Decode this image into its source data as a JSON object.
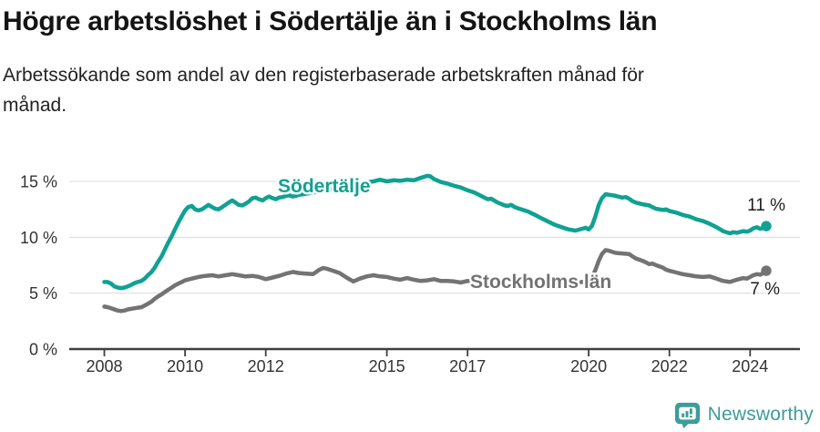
{
  "chart_data": {
    "type": "line",
    "title": "Högre arbetslöshet i Södertälje än i Stockholms län",
    "subtitle": "Arbetssökande som andel av den registerbaserade arbetskraften månad för månad.",
    "subtitle_lines": [
      "Arbetssökande som andel av den registerbaserade arbetskraften månad för",
      "månad."
    ],
    "unit": "%",
    "grid": "horizontal",
    "xlim": [
      2007.1,
      2025.2
    ],
    "ylim": [
      0,
      16
    ],
    "x_ticks": [
      2008,
      2010,
      2012,
      2015,
      2017,
      2020,
      2022,
      2024
    ],
    "x_tick_labels": [
      "2008",
      "2010",
      "2012",
      "2015",
      "2017",
      "2020",
      "2022",
      "2024"
    ],
    "y_ticks": [
      0,
      5,
      10,
      15
    ],
    "y_tick_labels": [
      "0 %",
      "5 %",
      "10 %",
      "15 %"
    ],
    "series": [
      {
        "name": "Södertälje",
        "color": "#10a193",
        "end_label": "11 %",
        "end_value": 11,
        "points": [
          [
            2008.0,
            6.0
          ],
          [
            2008.08,
            6.0
          ],
          [
            2008.17,
            5.85
          ],
          [
            2008.25,
            5.6
          ],
          [
            2008.33,
            5.5
          ],
          [
            2008.42,
            5.45
          ],
          [
            2008.5,
            5.5
          ],
          [
            2008.58,
            5.6
          ],
          [
            2008.67,
            5.75
          ],
          [
            2008.75,
            5.9
          ],
          [
            2008.83,
            6.0
          ],
          [
            2008.92,
            6.1
          ],
          [
            2009.0,
            6.3
          ],
          [
            2009.08,
            6.6
          ],
          [
            2009.17,
            6.9
          ],
          [
            2009.25,
            7.3
          ],
          [
            2009.33,
            7.8
          ],
          [
            2009.42,
            8.3
          ],
          [
            2009.5,
            8.9
          ],
          [
            2009.58,
            9.5
          ],
          [
            2009.67,
            10.1
          ],
          [
            2009.75,
            10.7
          ],
          [
            2009.83,
            11.3
          ],
          [
            2009.92,
            11.9
          ],
          [
            2010.0,
            12.4
          ],
          [
            2010.08,
            12.7
          ],
          [
            2010.17,
            12.8
          ],
          [
            2010.25,
            12.5
          ],
          [
            2010.33,
            12.4
          ],
          [
            2010.42,
            12.5
          ],
          [
            2010.5,
            12.7
          ],
          [
            2010.58,
            12.9
          ],
          [
            2010.67,
            12.7
          ],
          [
            2010.75,
            12.55
          ],
          [
            2010.83,
            12.5
          ],
          [
            2010.92,
            12.7
          ],
          [
            2011.0,
            12.9
          ],
          [
            2011.08,
            13.1
          ],
          [
            2011.17,
            13.3
          ],
          [
            2011.25,
            13.1
          ],
          [
            2011.33,
            12.9
          ],
          [
            2011.42,
            12.85
          ],
          [
            2011.5,
            13.0
          ],
          [
            2011.58,
            13.2
          ],
          [
            2011.67,
            13.5
          ],
          [
            2011.75,
            13.55
          ],
          [
            2011.83,
            13.4
          ],
          [
            2011.92,
            13.3
          ],
          [
            2012.0,
            13.5
          ],
          [
            2012.08,
            13.65
          ],
          [
            2012.17,
            13.5
          ],
          [
            2012.25,
            13.4
          ],
          [
            2012.33,
            13.55
          ],
          [
            2012.42,
            13.6
          ],
          [
            2012.5,
            13.7
          ],
          [
            2012.58,
            13.75
          ],
          [
            2012.67,
            13.65
          ],
          [
            2012.75,
            13.7
          ],
          [
            2012.83,
            13.8
          ],
          [
            2012.92,
            13.85
          ],
          [
            2013.0,
            13.9
          ],
          [
            2013.17,
            14.0
          ],
          [
            2013.33,
            14.1
          ],
          [
            2013.5,
            14.2
          ],
          [
            2013.67,
            14.35
          ],
          [
            2013.83,
            14.5
          ],
          [
            2014.0,
            14.6
          ],
          [
            2014.17,
            14.7
          ],
          [
            2014.33,
            14.8
          ],
          [
            2014.5,
            14.9
          ],
          [
            2014.67,
            15.0
          ],
          [
            2014.83,
            15.15
          ],
          [
            2015.0,
            15.0
          ],
          [
            2015.17,
            15.1
          ],
          [
            2015.33,
            15.05
          ],
          [
            2015.5,
            15.15
          ],
          [
            2015.67,
            15.1
          ],
          [
            2015.83,
            15.3
          ],
          [
            2016.0,
            15.5
          ],
          [
            2016.08,
            15.45
          ],
          [
            2016.17,
            15.2
          ],
          [
            2016.33,
            14.95
          ],
          [
            2016.5,
            14.8
          ],
          [
            2016.67,
            14.6
          ],
          [
            2016.83,
            14.45
          ],
          [
            2017.0,
            14.2
          ],
          [
            2017.17,
            14.0
          ],
          [
            2017.33,
            13.7
          ],
          [
            2017.5,
            13.4
          ],
          [
            2017.58,
            13.45
          ],
          [
            2017.75,
            13.1
          ],
          [
            2017.92,
            12.85
          ],
          [
            2018.0,
            12.8
          ],
          [
            2018.08,
            12.9
          ],
          [
            2018.17,
            12.7
          ],
          [
            2018.33,
            12.5
          ],
          [
            2018.5,
            12.3
          ],
          [
            2018.67,
            12.0
          ],
          [
            2018.83,
            11.7
          ],
          [
            2019.0,
            11.4
          ],
          [
            2019.17,
            11.1
          ],
          [
            2019.33,
            10.9
          ],
          [
            2019.5,
            10.7
          ],
          [
            2019.67,
            10.6
          ],
          [
            2019.83,
            10.75
          ],
          [
            2019.92,
            10.85
          ],
          [
            2020.0,
            10.7
          ],
          [
            2020.08,
            11.0
          ],
          [
            2020.17,
            11.9
          ],
          [
            2020.25,
            12.9
          ],
          [
            2020.33,
            13.5
          ],
          [
            2020.42,
            13.85
          ],
          [
            2020.5,
            13.8
          ],
          [
            2020.67,
            13.7
          ],
          [
            2020.83,
            13.55
          ],
          [
            2020.92,
            13.6
          ],
          [
            2021.0,
            13.45
          ],
          [
            2021.08,
            13.25
          ],
          [
            2021.17,
            13.1
          ],
          [
            2021.33,
            12.95
          ],
          [
            2021.5,
            12.85
          ],
          [
            2021.58,
            12.7
          ],
          [
            2021.67,
            12.55
          ],
          [
            2021.83,
            12.45
          ],
          [
            2021.92,
            12.5
          ],
          [
            2022.0,
            12.35
          ],
          [
            2022.17,
            12.2
          ],
          [
            2022.33,
            12.0
          ],
          [
            2022.5,
            11.85
          ],
          [
            2022.67,
            11.6
          ],
          [
            2022.83,
            11.45
          ],
          [
            2023.0,
            11.2
          ],
          [
            2023.17,
            10.9
          ],
          [
            2023.33,
            10.55
          ],
          [
            2023.5,
            10.35
          ],
          [
            2023.58,
            10.45
          ],
          [
            2023.67,
            10.4
          ],
          [
            2023.83,
            10.55
          ],
          [
            2023.92,
            10.5
          ],
          [
            2024.0,
            10.6
          ],
          [
            2024.08,
            10.8
          ],
          [
            2024.17,
            10.9
          ],
          [
            2024.25,
            10.75
          ],
          [
            2024.33,
            10.85
          ],
          [
            2024.4,
            11.0
          ]
        ]
      },
      {
        "name": "Stockholms län",
        "color": "#737373",
        "end_label": "7 %",
        "end_value": 7,
        "points": [
          [
            2008.0,
            3.8
          ],
          [
            2008.08,
            3.75
          ],
          [
            2008.17,
            3.65
          ],
          [
            2008.25,
            3.55
          ],
          [
            2008.33,
            3.45
          ],
          [
            2008.42,
            3.4
          ],
          [
            2008.5,
            3.45
          ],
          [
            2008.58,
            3.55
          ],
          [
            2008.67,
            3.6
          ],
          [
            2008.75,
            3.65
          ],
          [
            2008.83,
            3.7
          ],
          [
            2008.92,
            3.75
          ],
          [
            2009.0,
            3.9
          ],
          [
            2009.08,
            4.05
          ],
          [
            2009.17,
            4.25
          ],
          [
            2009.25,
            4.5
          ],
          [
            2009.33,
            4.7
          ],
          [
            2009.42,
            4.9
          ],
          [
            2009.5,
            5.1
          ],
          [
            2009.58,
            5.3
          ],
          [
            2009.67,
            5.5
          ],
          [
            2009.75,
            5.7
          ],
          [
            2009.83,
            5.85
          ],
          [
            2009.92,
            6.0
          ],
          [
            2010.0,
            6.15
          ],
          [
            2010.17,
            6.3
          ],
          [
            2010.33,
            6.45
          ],
          [
            2010.5,
            6.55
          ],
          [
            2010.67,
            6.6
          ],
          [
            2010.83,
            6.5
          ],
          [
            2011.0,
            6.6
          ],
          [
            2011.17,
            6.7
          ],
          [
            2011.33,
            6.6
          ],
          [
            2011.5,
            6.5
          ],
          [
            2011.67,
            6.55
          ],
          [
            2011.83,
            6.45
          ],
          [
            2012.0,
            6.25
          ],
          [
            2012.17,
            6.4
          ],
          [
            2012.33,
            6.55
          ],
          [
            2012.5,
            6.75
          ],
          [
            2012.67,
            6.9
          ],
          [
            2012.83,
            6.8
          ],
          [
            2013.0,
            6.75
          ],
          [
            2013.17,
            6.7
          ],
          [
            2013.33,
            7.1
          ],
          [
            2013.42,
            7.25
          ],
          [
            2013.5,
            7.2
          ],
          [
            2013.67,
            7.0
          ],
          [
            2013.83,
            6.8
          ],
          [
            2014.0,
            6.4
          ],
          [
            2014.17,
            6.05
          ],
          [
            2014.33,
            6.3
          ],
          [
            2014.5,
            6.5
          ],
          [
            2014.67,
            6.6
          ],
          [
            2014.83,
            6.5
          ],
          [
            2015.0,
            6.45
          ],
          [
            2015.17,
            6.3
          ],
          [
            2015.33,
            6.2
          ],
          [
            2015.5,
            6.35
          ],
          [
            2015.67,
            6.2
          ],
          [
            2015.83,
            6.1
          ],
          [
            2016.0,
            6.15
          ],
          [
            2016.17,
            6.25
          ],
          [
            2016.33,
            6.1
          ],
          [
            2016.5,
            6.1
          ],
          [
            2016.67,
            6.05
          ],
          [
            2016.83,
            5.95
          ],
          [
            2017.0,
            6.1
          ],
          [
            2017.17,
            6.05
          ],
          [
            2017.33,
            6.0
          ],
          [
            2017.5,
            6.05
          ],
          [
            2017.67,
            5.95
          ],
          [
            2017.83,
            5.9
          ],
          [
            2018.0,
            5.95
          ],
          [
            2018.17,
            5.9
          ],
          [
            2018.33,
            5.85
          ],
          [
            2018.5,
            5.9
          ],
          [
            2018.67,
            5.8
          ],
          [
            2018.83,
            5.75
          ],
          [
            2019.0,
            5.8
          ],
          [
            2019.17,
            5.85
          ],
          [
            2019.33,
            5.9
          ],
          [
            2019.5,
            5.85
          ],
          [
            2019.67,
            5.9
          ],
          [
            2019.83,
            6.0
          ],
          [
            2020.0,
            6.05
          ],
          [
            2020.08,
            6.3
          ],
          [
            2020.17,
            7.1
          ],
          [
            2020.25,
            7.9
          ],
          [
            2020.33,
            8.5
          ],
          [
            2020.42,
            8.85
          ],
          [
            2020.5,
            8.8
          ],
          [
            2020.58,
            8.7
          ],
          [
            2020.67,
            8.6
          ],
          [
            2020.83,
            8.55
          ],
          [
            2021.0,
            8.5
          ],
          [
            2021.08,
            8.3
          ],
          [
            2021.17,
            8.1
          ],
          [
            2021.33,
            7.9
          ],
          [
            2021.42,
            7.75
          ],
          [
            2021.5,
            7.6
          ],
          [
            2021.58,
            7.65
          ],
          [
            2021.67,
            7.5
          ],
          [
            2021.83,
            7.3
          ],
          [
            2021.92,
            7.1
          ],
          [
            2022.0,
            7.0
          ],
          [
            2022.17,
            6.85
          ],
          [
            2022.33,
            6.7
          ],
          [
            2022.5,
            6.6
          ],
          [
            2022.67,
            6.5
          ],
          [
            2022.83,
            6.45
          ],
          [
            2023.0,
            6.5
          ],
          [
            2023.17,
            6.3
          ],
          [
            2023.33,
            6.1
          ],
          [
            2023.5,
            6.0
          ],
          [
            2023.67,
            6.2
          ],
          [
            2023.83,
            6.35
          ],
          [
            2023.92,
            6.3
          ],
          [
            2024.0,
            6.45
          ],
          [
            2024.08,
            6.6
          ],
          [
            2024.17,
            6.7
          ],
          [
            2024.25,
            6.65
          ],
          [
            2024.33,
            6.8
          ],
          [
            2024.4,
            7.0
          ]
        ]
      }
    ],
    "legend_position": "inline-labels"
  },
  "footer": {
    "brand": "Newsworthy",
    "brand_color": "#3e9c99"
  }
}
